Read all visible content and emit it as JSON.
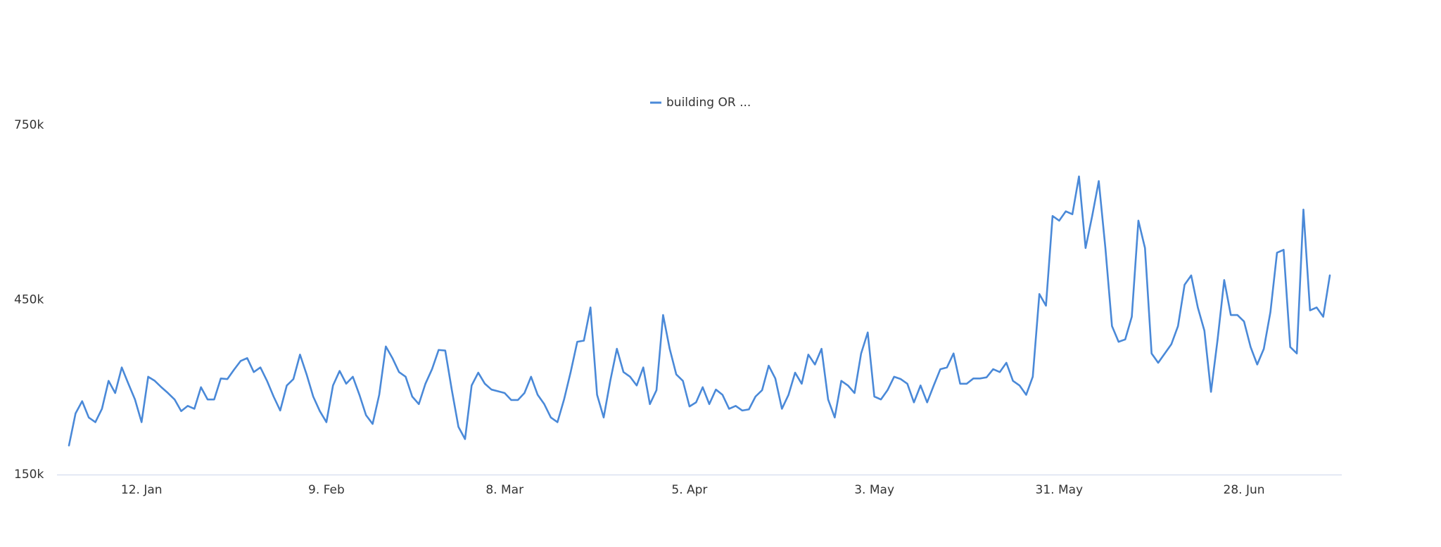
{
  "chart_data": {
    "type": "line",
    "legend": "top",
    "grid": false,
    "x": [
      "01-01",
      "01-02",
      "01-03",
      "01-04",
      "01-05",
      "01-06",
      "01-07",
      "01-08",
      "01-09",
      "01-10",
      "01-11",
      "01-12",
      "01-13",
      "01-14",
      "01-15",
      "01-16",
      "01-17",
      "01-18",
      "01-19",
      "01-20",
      "01-21",
      "01-22",
      "01-23",
      "01-24",
      "01-25",
      "01-26",
      "01-27",
      "01-28",
      "01-29",
      "01-30",
      "01-31",
      "02-01",
      "02-02",
      "02-03",
      "02-04",
      "02-05",
      "02-06",
      "02-07",
      "02-08",
      "02-09",
      "02-10",
      "02-11",
      "02-12",
      "02-13",
      "02-14",
      "02-15",
      "02-16",
      "02-17",
      "02-18",
      "02-19",
      "02-20",
      "02-21",
      "02-22",
      "02-23",
      "02-24",
      "02-25",
      "02-26",
      "02-27",
      "02-28",
      "03-01",
      "03-02",
      "03-03",
      "03-04",
      "03-05",
      "03-06",
      "03-07",
      "03-08",
      "03-09",
      "03-10",
      "03-11",
      "03-12",
      "03-13",
      "03-14",
      "03-15",
      "03-16",
      "03-17",
      "03-18",
      "03-19",
      "03-20",
      "03-21",
      "03-22",
      "03-23",
      "03-24",
      "03-25",
      "03-26",
      "03-27",
      "03-28",
      "03-29",
      "03-30",
      "03-31",
      "04-01",
      "04-02",
      "04-03",
      "04-04",
      "04-05",
      "04-06",
      "04-07",
      "04-08",
      "04-09",
      "04-10",
      "04-11",
      "04-12",
      "04-13",
      "04-14",
      "04-15",
      "04-16",
      "04-17",
      "04-18",
      "04-19",
      "04-20",
      "04-21",
      "04-22",
      "04-23",
      "04-24",
      "04-25",
      "04-26",
      "04-27",
      "04-28",
      "04-29",
      "04-30",
      "05-01",
      "05-02",
      "05-03",
      "05-04",
      "05-05",
      "05-06",
      "05-07",
      "05-08",
      "05-09",
      "05-10",
      "05-11",
      "05-12",
      "05-13",
      "05-14",
      "05-15",
      "05-16",
      "05-17",
      "05-18",
      "05-19",
      "05-20",
      "05-21",
      "05-22",
      "05-23",
      "05-24",
      "05-25",
      "05-26",
      "05-27",
      "05-28",
      "05-29",
      "05-30",
      "05-31",
      "06-01",
      "06-02",
      "06-03",
      "06-04",
      "06-05",
      "06-06",
      "06-07",
      "06-08",
      "06-09",
      "06-10",
      "06-11",
      "06-12",
      "06-13",
      "06-14",
      "06-15",
      "06-16",
      "06-17",
      "06-18",
      "06-19",
      "06-20",
      "06-21",
      "06-22",
      "06-23",
      "06-24",
      "06-25",
      "06-26",
      "06-27",
      "06-28",
      "06-29",
      "06-30",
      "07-01",
      "07-02",
      "07-03",
      "07-04",
      "07-05",
      "07-06",
      "07-07",
      "07-08",
      "07-09",
      "07-10",
      "07-11"
    ],
    "series": [
      {
        "name": "building OR ...",
        "color": "#4a89d8",
        "values": [
          200000,
          255000,
          276000,
          248000,
          240000,
          263000,
          311000,
          290000,
          334000,
          306000,
          279000,
          240000,
          318000,
          311000,
          300000,
          290000,
          279000,
          259000,
          268000,
          263000,
          300000,
          279000,
          279000,
          315000,
          314000,
          330000,
          345000,
          350000,
          326000,
          334000,
          311000,
          284000,
          260000,
          303000,
          314000,
          356000,
          322000,
          284000,
          259000,
          240000,
          303000,
          328000,
          306000,
          318000,
          287000,
          252000,
          237000,
          287000,
          370000,
          350000,
          326000,
          318000,
          284000,
          271000,
          306000,
          331000,
          364000,
          363000,
          295000,
          232000,
          211000,
          303000,
          325000,
          306000,
          296000,
          293000,
          290000,
          278000,
          278000,
          290000,
          318000,
          287000,
          271000,
          248000,
          240000,
          279000,
          326000,
          378000,
          380000,
          437000,
          287000,
          248000,
          311000,
          366000,
          326000,
          318000,
          303000,
          334000,
          271000,
          295000,
          424000,
          366000,
          322000,
          311000,
          267000,
          274000,
          300000,
          271000,
          296000,
          287000,
          263000,
          268000,
          260000,
          262000,
          284000,
          295000,
          337000,
          315000,
          263000,
          287000,
          325000,
          306000,
          356000,
          339000,
          366000,
          279000,
          248000,
          311000,
          303000,
          290000,
          358000,
          394000,
          284000,
          279000,
          295000,
          318000,
          314000,
          306000,
          274000,
          303000,
          274000,
          303000,
          331000,
          334000,
          358000,
          306000,
          306000,
          315000,
          315000,
          317000,
          331000,
          326000,
          342000,
          311000,
          303000,
          287000,
          318000,
          460000,
          440000,
          594000,
          586000,
          602000,
          597000,
          662000,
          539000,
          594000,
          654000,
          539000,
          405000,
          378000,
          382000,
          421000,
          586000,
          539000,
          358000,
          342000,
          358000,
          374000,
          405000,
          476000,
          492000,
          437000,
          397000,
          292000,
          382000,
          484000,
          424000,
          424000,
          413000,
          369000,
          339000,
          366000,
          429000,
          531000,
          536000,
          369000,
          358000,
          605000,
          432000,
          437000,
          421000,
          492000
        ]
      }
    ],
    "xlim": [
      "01-01",
      "07-11"
    ],
    "xticks": [
      {
        "value": "01-12",
        "label": "12. Jan"
      },
      {
        "value": "02-09",
        "label": "9. Feb"
      },
      {
        "value": "03-08",
        "label": "8. Mar"
      },
      {
        "value": "04-05",
        "label": "5. Apr"
      },
      {
        "value": "05-03",
        "label": "3. May"
      },
      {
        "value": "05-31",
        "label": "31. May"
      },
      {
        "value": "06-28",
        "label": "28. Jun"
      }
    ],
    "ylim": [
      150000,
      750000
    ],
    "yticks": [
      {
        "value": 150000,
        "label": "150k"
      },
      {
        "value": 450000,
        "label": "450k"
      },
      {
        "value": 750000,
        "label": "750k"
      }
    ]
  }
}
